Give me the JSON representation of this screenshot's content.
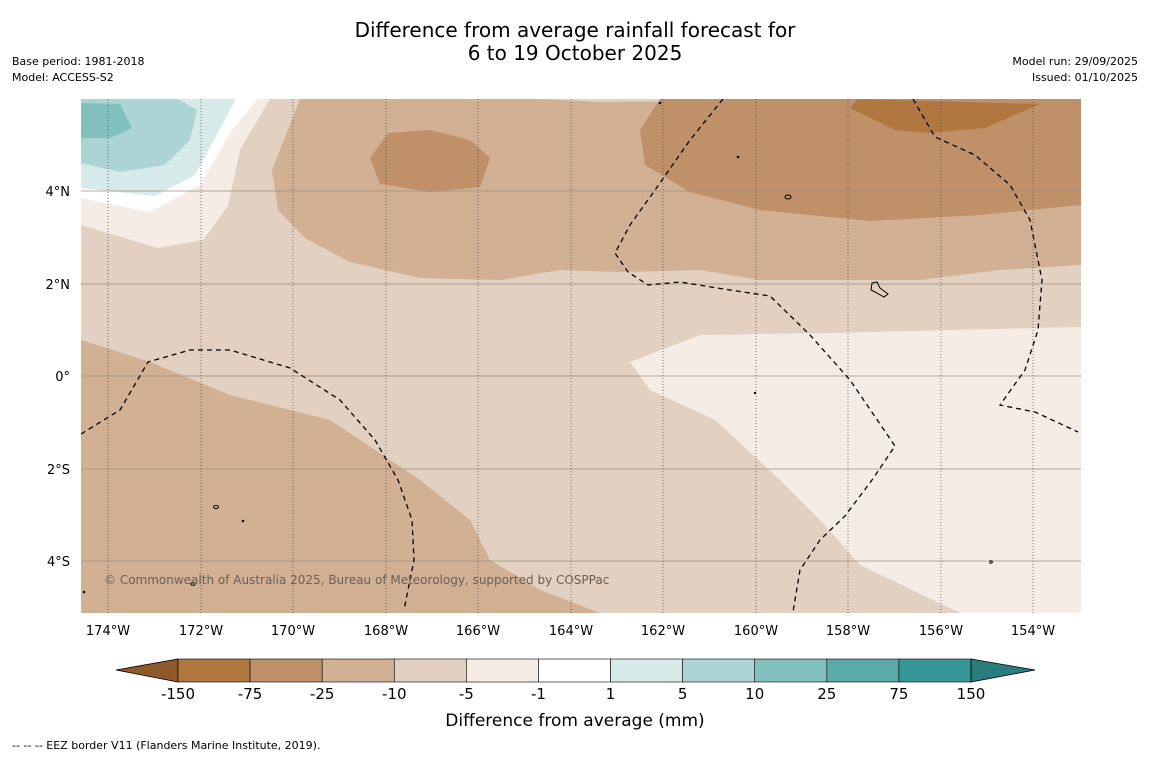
{
  "title": {
    "line1": "Difference from average rainfall forecast for",
    "line2": "6 to 19 October 2025"
  },
  "meta": {
    "base_period": "Base period: 1981-2018",
    "model": "Model: ACCESS-S2",
    "model_run": "Model run: 29/09/2025",
    "issued": "Issued: 01/10/2025"
  },
  "map": {
    "lon_range": [
      -174.6,
      -152.9
    ],
    "lat_range": [
      -5.1,
      5.9
    ],
    "lon_ticks": [
      {
        "value": -174,
        "label": "174°W"
      },
      {
        "value": -172,
        "label": "172°W"
      },
      {
        "value": -170,
        "label": "170°W"
      },
      {
        "value": -168,
        "label": "168°W"
      },
      {
        "value": -166,
        "label": "166°W"
      },
      {
        "value": -164,
        "label": "164°W"
      },
      {
        "value": -162,
        "label": "162°W"
      },
      {
        "value": -160,
        "label": "160°W"
      },
      {
        "value": -158,
        "label": "158°W"
      },
      {
        "value": -156,
        "label": "156°W"
      },
      {
        "value": -154,
        "label": "154°W"
      }
    ],
    "lat_ticks": [
      {
        "value": 4,
        "label": "4°N"
      },
      {
        "value": 2,
        "label": "2°N"
      },
      {
        "value": 0,
        "label": "0°"
      },
      {
        "value": -2,
        "label": "2°S"
      },
      {
        "value": -4,
        "label": "4°S"
      }
    ],
    "copyright": "© Commonwealth of Australia 2025, Bureau of Meteorology, supported by COSPPac"
  },
  "colorbar": {
    "title": "Difference from average (mm)",
    "labels": [
      "-150",
      "-75",
      "-25",
      "-10",
      "-5",
      "-1",
      "1",
      "5",
      "10",
      "25",
      "75",
      "150"
    ],
    "colors": [
      "#b07840",
      "#c09068",
      "#d1b094",
      "#e2d0c0",
      "#f5ece6",
      "#ffffff",
      "#d6eae9",
      "#acd4d4",
      "#82c0be",
      "#5aaaa8",
      "#359797"
    ],
    "under_color": "#8e5a2c",
    "over_color": "#2a7d7d"
  },
  "colors": {
    "dry_strong": "#b07840",
    "dry_moderate": "#c09068",
    "dry_light": "#d1b094",
    "dry_slight": "#e2d0c0",
    "dry_minimal": "#f5ece6",
    "wet_slight": "#d6eae9",
    "wet_light": "#acd4d4",
    "wet_moderate": "#82c0be"
  },
  "footer": {
    "eez_note": "--  --  -- EEZ border V11 (Flanders Marine Institute, 2019)."
  }
}
